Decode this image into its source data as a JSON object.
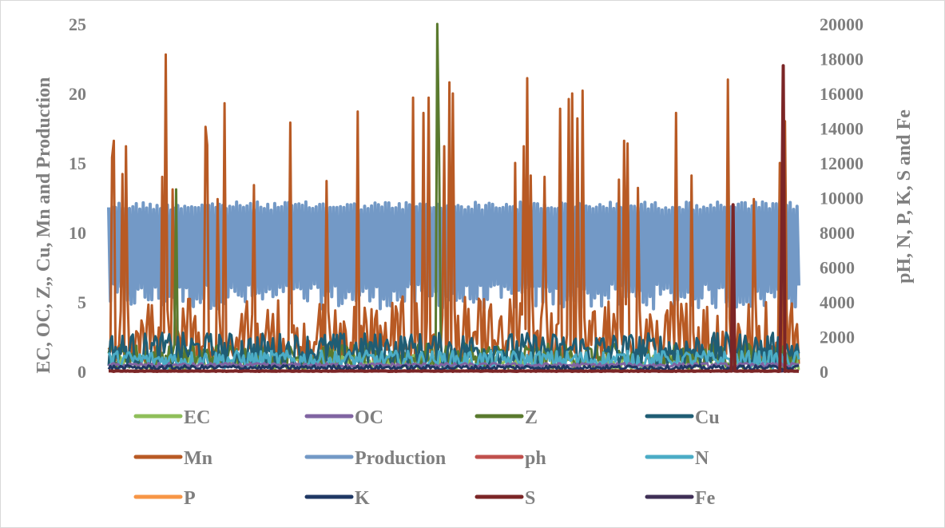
{
  "chart_data": {
    "type": "line",
    "title": "",
    "y_left_label": "EC, OC, Z,, Cu, Mn and Production",
    "y_right_label": "pH, N, P, K, S and Fe",
    "y_left_lim": [
      0,
      25
    ],
    "y_right_lim": [
      0,
      20000
    ],
    "y_left_ticks": [
      "0",
      "5",
      "10",
      "15",
      "20",
      "25"
    ],
    "y_right_ticks": [
      "0",
      "2000",
      "4000",
      "6000",
      "8000",
      "10000",
      "12000",
      "14000",
      "16000",
      "18000",
      "20000"
    ],
    "n_points": 400,
    "legend": [
      "EC",
      "OC",
      "Z",
      "Cu",
      "Mn",
      "Production",
      "ph",
      "N",
      "P",
      "K",
      "S",
      "Fe"
    ],
    "series": [
      {
        "name": "Production",
        "axis": "left",
        "color": "#7399c6",
        "base_range": [
          4.5,
          12.2
        ],
        "note": "dense oscillation between ~4.5 and ~12.2"
      },
      {
        "name": "Mn",
        "axis": "left",
        "color": "#b85a24",
        "base_range": [
          0.5,
          5.4
        ],
        "spikes": [
          [
            2,
            15.4
          ],
          [
            3,
            16.6
          ],
          [
            8,
            14.2
          ],
          [
            10,
            16.2
          ],
          [
            31,
            14.0
          ],
          [
            33,
            22.8
          ],
          [
            37,
            13.1
          ],
          [
            56,
            17.6
          ],
          [
            57,
            16.3
          ],
          [
            63,
            12.4
          ],
          [
            67,
            19.3
          ],
          [
            84,
            13.4
          ],
          [
            105,
            17.9
          ],
          [
            126,
            13.7
          ],
          [
            144,
            18.7
          ],
          [
            176,
            19.7
          ],
          [
            182,
            18.6
          ],
          [
            185,
            19.7
          ],
          [
            194,
            16.2
          ],
          [
            197,
            20.8
          ],
          [
            199,
            20.0
          ],
          [
            235,
            15.0
          ],
          [
            240,
            16.2
          ],
          [
            242,
            21.1
          ],
          [
            244,
            14.1
          ],
          [
            252,
            14.0
          ],
          [
            261,
            18.9
          ],
          [
            266,
            19.6
          ],
          [
            268,
            20.0
          ],
          [
            271,
            18.2
          ],
          [
            274,
            20.2
          ],
          [
            295,
            13.8
          ],
          [
            298,
            16.6
          ],
          [
            300,
            16.4
          ],
          [
            306,
            13.2
          ],
          [
            328,
            18.6
          ],
          [
            337,
            14.1
          ],
          [
            358,
            21.0
          ],
          [
            373,
            12.4
          ],
          [
            388,
            15.0
          ],
          [
            391,
            18.0
          ]
        ]
      },
      {
        "name": "Z",
        "axis": "left",
        "color": "#5a7a2e",
        "base_range": [
          0.2,
          2.0
        ],
        "spikes": [
          [
            39,
            13.1
          ],
          [
            190,
            25.0
          ],
          [
            191,
            16.2
          ]
        ]
      },
      {
        "name": "EC",
        "axis": "left",
        "color": "#8fbf5a",
        "base_range": [
          0.1,
          1.2
        ]
      },
      {
        "name": "OC",
        "axis": "left",
        "color": "#8064a2",
        "base_range": [
          0.3,
          0.6
        ]
      },
      {
        "name": "Cu",
        "axis": "left",
        "color": "#1f5d74",
        "base_range": [
          0.3,
          2.8
        ]
      },
      {
        "name": "ph",
        "axis": "right",
        "color": "#c0504d",
        "base_range": [
          5,
          9
        ]
      },
      {
        "name": "N",
        "axis": "right",
        "color": "#4bacc6",
        "base_range": [
          150,
          1200
        ]
      },
      {
        "name": "P",
        "axis": "right",
        "color": "#f79646",
        "base_range": [
          10,
          60
        ]
      },
      {
        "name": "K",
        "axis": "right",
        "color": "#1f3864",
        "base_range": [
          100,
          350
        ]
      },
      {
        "name": "S",
        "axis": "right",
        "color": "#7b2526",
        "base_range": [
          0,
          40
        ],
        "spikes": [
          [
            361,
            9600
          ],
          [
            389,
            6000
          ],
          [
            390,
            17600
          ]
        ]
      },
      {
        "name": "Fe",
        "axis": "right",
        "color": "#3f2f56",
        "base_range": [
          0,
          60
        ]
      }
    ]
  },
  "legend_colors": {
    "EC": "#8fbf5a",
    "OC": "#8064a2",
    "Z": "#5a7a2e",
    "Cu": "#1f5d74",
    "Mn": "#b85a24",
    "Production": "#7399c6",
    "ph": "#c0504d",
    "N": "#4bacc6",
    "P": "#f79646",
    "K": "#1f3864",
    "S": "#7b2526",
    "Fe": "#3f2f56"
  }
}
